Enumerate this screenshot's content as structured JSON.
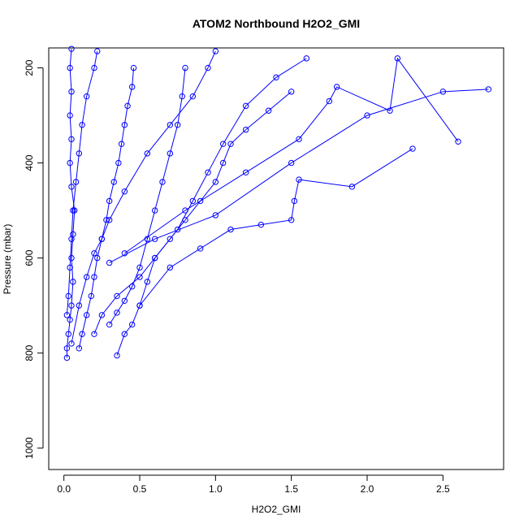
{
  "chart_data": {
    "type": "scatter",
    "title": "ATOM2 Northbound H2O2_GMI",
    "xlabel": "H2O2_GMI",
    "ylabel": "Pressure (mbar)",
    "xlim": [
      -0.1,
      2.9
    ],
    "ylim": [
      1045,
      158
    ],
    "y_reversed": true,
    "x_ticks": [
      "0.0",
      "0.5",
      "1.0",
      "1.5",
      "2.0",
      "2.5"
    ],
    "y_ticks": [
      "200",
      "400",
      "600",
      "800",
      "1000"
    ],
    "grid": false,
    "legend": "none",
    "marker": "open-circle",
    "series": [
      {
        "points": [
          [
            0.02,
            810
          ],
          [
            0.02,
            790
          ],
          [
            0.03,
            760
          ],
          [
            0.04,
            730
          ],
          [
            0.05,
            700
          ],
          [
            0.06,
            650
          ],
          [
            0.05,
            600
          ],
          [
            0.06,
            550
          ],
          [
            0.07,
            500
          ],
          [
            0.05,
            450
          ],
          [
            0.04,
            400
          ],
          [
            0.05,
            350
          ],
          [
            0.04,
            300
          ],
          [
            0.05,
            250
          ],
          [
            0.04,
            200
          ],
          [
            0.05,
            160
          ]
        ]
      },
      {
        "points": [
          [
            0.1,
            790
          ],
          [
            0.12,
            760
          ],
          [
            0.15,
            720
          ],
          [
            0.18,
            680
          ],
          [
            0.2,
            640
          ],
          [
            0.22,
            600
          ],
          [
            0.25,
            560
          ],
          [
            0.28,
            520
          ],
          [
            0.3,
            480
          ],
          [
            0.33,
            440
          ],
          [
            0.36,
            400
          ],
          [
            0.38,
            360
          ],
          [
            0.4,
            320
          ],
          [
            0.42,
            280
          ],
          [
            0.45,
            240
          ],
          [
            0.46,
            200
          ]
        ]
      },
      {
        "points": [
          [
            0.35,
            805
          ],
          [
            0.4,
            760
          ],
          [
            0.45,
            740
          ],
          [
            0.5,
            700
          ],
          [
            0.55,
            650
          ],
          [
            0.6,
            600
          ],
          [
            0.7,
            560
          ],
          [
            0.8,
            520
          ],
          [
            0.9,
            480
          ],
          [
            1.0,
            440
          ],
          [
            1.05,
            400
          ],
          [
            1.1,
            360
          ],
          [
            1.2,
            330
          ],
          [
            1.35,
            290
          ],
          [
            1.5,
            250
          ]
        ]
      },
      {
        "points": [
          [
            0.5,
            700
          ],
          [
            0.7,
            620
          ],
          [
            0.9,
            580
          ],
          [
            1.1,
            540
          ],
          [
            1.3,
            530
          ],
          [
            1.5,
            520
          ],
          [
            1.52,
            480
          ],
          [
            1.55,
            435
          ],
          [
            1.9,
            450
          ],
          [
            2.3,
            370
          ]
        ]
      },
      {
        "points": [
          [
            0.3,
            610
          ],
          [
            0.6,
            560
          ],
          [
            1.0,
            510
          ],
          [
            1.5,
            400
          ],
          [
            2.0,
            300
          ],
          [
            2.5,
            250
          ],
          [
            2.8,
            245
          ]
        ]
      },
      {
        "points": [
          [
            0.4,
            590
          ],
          [
            0.8,
            500
          ],
          [
            1.2,
            420
          ],
          [
            1.55,
            350
          ],
          [
            1.75,
            270
          ],
          [
            1.8,
            240
          ],
          [
            2.15,
            290
          ],
          [
            2.2,
            180
          ],
          [
            2.6,
            355
          ]
        ]
      },
      {
        "points": [
          [
            0.05,
            780
          ],
          [
            0.1,
            700
          ],
          [
            0.15,
            640
          ],
          [
            0.2,
            590
          ],
          [
            0.25,
            560
          ],
          [
            0.3,
            520
          ],
          [
            0.4,
            460
          ],
          [
            0.55,
            380
          ],
          [
            0.7,
            320
          ],
          [
            0.85,
            260
          ],
          [
            0.95,
            200
          ],
          [
            1.0,
            165
          ]
        ]
      },
      {
        "points": [
          [
            0.02,
            720
          ],
          [
            0.03,
            680
          ],
          [
            0.04,
            620
          ],
          [
            0.05,
            560
          ],
          [
            0.06,
            500
          ],
          [
            0.08,
            440
          ],
          [
            0.1,
            380
          ],
          [
            0.12,
            320
          ],
          [
            0.15,
            260
          ],
          [
            0.2,
            200
          ],
          [
            0.22,
            165
          ]
        ]
      },
      {
        "points": [
          [
            0.2,
            760
          ],
          [
            0.25,
            720
          ],
          [
            0.35,
            680
          ],
          [
            0.5,
            640
          ],
          [
            0.6,
            600
          ],
          [
            0.75,
            540
          ],
          [
            0.85,
            480
          ],
          [
            0.95,
            420
          ],
          [
            1.05,
            360
          ],
          [
            1.2,
            280
          ],
          [
            1.4,
            220
          ],
          [
            1.6,
            180
          ]
        ]
      },
      {
        "points": [
          [
            0.3,
            740
          ],
          [
            0.35,
            715
          ],
          [
            0.4,
            690
          ],
          [
            0.45,
            660
          ],
          [
            0.5,
            620
          ],
          [
            0.55,
            560
          ],
          [
            0.6,
            500
          ],
          [
            0.65,
            440
          ],
          [
            0.7,
            380
          ],
          [
            0.75,
            320
          ],
          [
            0.78,
            260
          ],
          [
            0.8,
            200
          ]
        ]
      }
    ]
  }
}
